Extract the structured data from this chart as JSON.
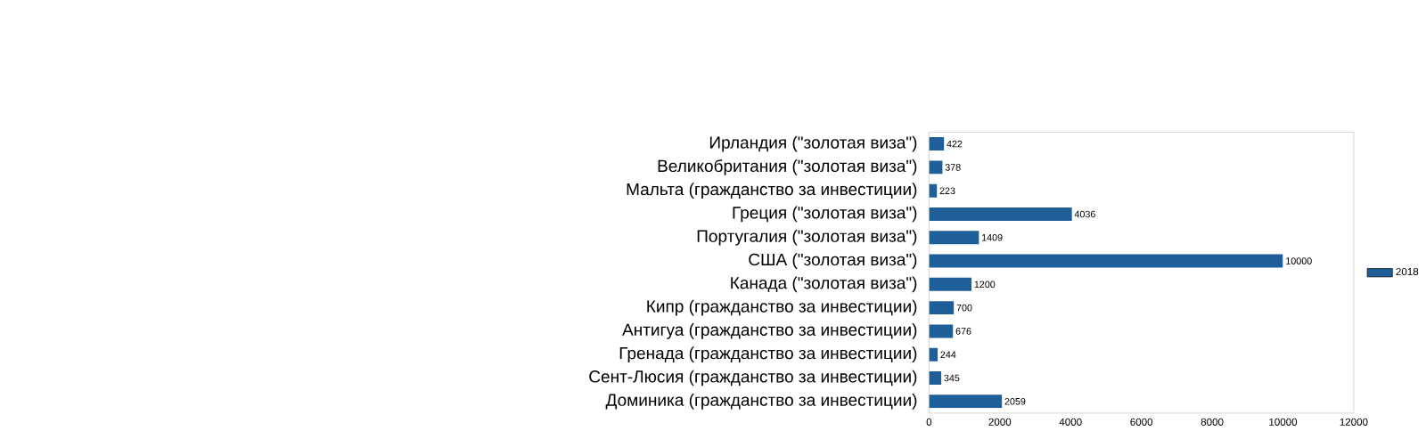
{
  "chart_data": {
    "type": "bar",
    "orientation": "horizontal",
    "categories": [
      "Ирландия (\"золотая виза\")",
      "Великобритания (\"золотая виза\")",
      "Мальта (гражданство за инвестиции)",
      "Греция (\"золотая виза\")",
      "Португалия (\"золотая виза\")",
      "США (\"золотая виза\")",
      "Канада (\"золотая виза\")",
      "Кипр (гражданство за инвестиции)",
      "Антигуа (гражданство за инвестиции)",
      "Гренада (гражданство за инвестиции)",
      "Сент-Люсия (гражданство за инвестиции)",
      "Доминика (гражданство за инвестиции)"
    ],
    "series": [
      {
        "name": "2018",
        "color": "#1f5f99",
        "values": [
          422,
          378,
          223,
          4036,
          1409,
          10000,
          1200,
          700,
          676,
          244,
          345,
          2059
        ]
      }
    ],
    "xlim": [
      0,
      12000
    ],
    "xticks": [
      0,
      2000,
      4000,
      6000,
      8000,
      10000,
      12000
    ],
    "data_labels": true,
    "legend": "right"
  }
}
